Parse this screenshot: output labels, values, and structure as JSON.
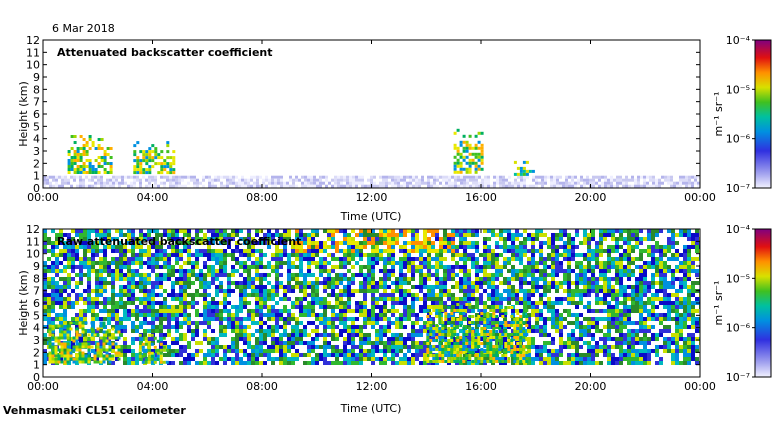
{
  "date_label": "6 Mar 2018",
  "instrument_label": "Vehmasmaki CL51 ceilometer",
  "chart_data": [
    {
      "type": "heatmap",
      "title": "Attenuated backscatter coefficient",
      "xlabel": "Time (UTC)",
      "ylabel": "Height (km)",
      "x_ticks": [
        "00:00",
        "04:00",
        "08:00",
        "12:00",
        "16:00",
        "20:00",
        "00:00"
      ],
      "xlim_hours": [
        0,
        24
      ],
      "y_ticks": [
        0,
        1,
        2,
        3,
        4,
        5,
        6,
        7,
        8,
        9,
        10,
        11,
        12
      ],
      "ylim_km": [
        0,
        12
      ],
      "colorbar": {
        "unit_label": "m⁻¹ sr⁻¹",
        "ticks": [
          "10⁻⁴",
          "10⁻⁵",
          "10⁻⁶",
          "10⁻⁷"
        ],
        "range": [
          1e-07,
          0.0001
        ],
        "scale": "log"
      },
      "features": [
        {
          "label": "Boundary layer",
          "time_start_h": 0,
          "time_end_h": 24,
          "height_top_km": 1.0,
          "level": "low"
        },
        {
          "label": "Cloud layer",
          "time_start_h": 0.9,
          "time_end_h": 2.5,
          "height_base_km": 1.3,
          "height_top_km": 4.3,
          "level": "high"
        },
        {
          "label": "Cloud layer",
          "time_start_h": 3.3,
          "time_end_h": 4.8,
          "height_base_km": 1.3,
          "height_top_km": 3.8,
          "level": "high"
        },
        {
          "label": "Cloud layer",
          "time_start_h": 15.0,
          "time_end_h": 16.0,
          "height_base_km": 1.3,
          "height_top_km": 4.8,
          "level": "high"
        },
        {
          "label": "Cloud layer",
          "time_start_h": 17.2,
          "time_end_h": 17.9,
          "height_base_km": 1.0,
          "height_top_km": 2.2,
          "level": "medium"
        }
      ]
    },
    {
      "type": "heatmap",
      "title": "Raw attenuated backscatter coefficient",
      "xlabel": "Time (UTC)",
      "ylabel": "Height (km)",
      "x_ticks": [
        "00:00",
        "04:00",
        "08:00",
        "12:00",
        "16:00",
        "20:00",
        "00:00"
      ],
      "xlim_hours": [
        0,
        24
      ],
      "y_ticks": [
        0,
        1,
        2,
        3,
        4,
        5,
        6,
        7,
        8,
        9,
        10,
        11,
        12
      ],
      "ylim_km": [
        0,
        12
      ],
      "colorbar": {
        "unit_label": "m⁻¹ sr⁻¹",
        "ticks": [
          "10⁻⁴",
          "10⁻⁵",
          "10⁻⁶",
          "10⁻⁷"
        ],
        "range": [
          1e-07,
          0.0001
        ],
        "scale": "log"
      },
      "features": [
        {
          "label": "Noise field",
          "time_start_h": 0,
          "time_end_h": 24,
          "height_base_km": 1.0,
          "height_top_km": 12,
          "level": "noise"
        },
        {
          "label": "Cloud layer",
          "time_start_h": 0.2,
          "time_end_h": 2.8,
          "height_base_km": 1.3,
          "height_top_km": 4.5,
          "level": "high"
        },
        {
          "label": "Cloud layer",
          "time_start_h": 3.5,
          "time_end_h": 4.5,
          "height_base_km": 1.3,
          "height_top_km": 3.5,
          "level": "high"
        },
        {
          "label": "Cloud layer",
          "time_start_h": 14.0,
          "time_end_h": 17.7,
          "height_base_km": 1.3,
          "height_top_km": 6.0,
          "level": "high"
        }
      ]
    }
  ]
}
